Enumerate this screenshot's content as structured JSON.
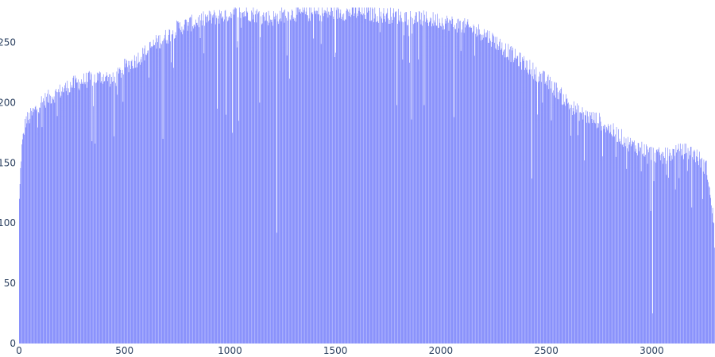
{
  "chart_data": {
    "type": "bar",
    "title": "",
    "xlabel": "",
    "ylabel": "",
    "xlim": [
      0,
      3300
    ],
    "ylim": [
      0,
      280
    ],
    "x_ticks": [
      0,
      500,
      1000,
      1500,
      2000,
      2500,
      3000
    ],
    "y_ticks": [
      0,
      50,
      100,
      150,
      200,
      250
    ],
    "bar_color": "#636efa",
    "grid": false,
    "legend": "none",
    "profile_x": [
      0,
      10,
      30,
      50,
      80,
      100,
      150,
      200,
      250,
      300,
      350,
      400,
      450,
      500,
      550,
      600,
      650,
      700,
      750,
      800,
      850,
      900,
      950,
      1000,
      1050,
      1100,
      1150,
      1200,
      1250,
      1300,
      1400,
      1500,
      1600,
      1700,
      1800,
      1900,
      2000,
      2100,
      2200,
      2250,
      2300,
      2350,
      2400,
      2450,
      2500,
      2550,
      2600,
      2650,
      2700,
      2750,
      2800,
      2850,
      2900,
      2950,
      3000,
      3050,
      3100,
      3150,
      3200,
      3240,
      3260,
      3270,
      3280,
      3290,
      3300
    ],
    "profile_y": [
      118,
      160,
      185,
      188,
      195,
      200,
      205,
      210,
      215,
      218,
      220,
      222,
      218,
      230,
      235,
      242,
      250,
      255,
      262,
      265,
      268,
      270,
      272,
      274,
      275,
      274,
      272,
      270,
      273,
      274,
      274,
      275,
      275,
      273,
      272,
      270,
      268,
      264,
      258,
      252,
      245,
      238,
      232,
      225,
      218,
      210,
      200,
      192,
      188,
      185,
      178,
      172,
      165,
      162,
      158,
      155,
      158,
      160,
      158,
      150,
      145,
      135,
      115,
      105,
      100
    ],
    "dips": [
      [
        680,
        170
      ],
      [
        345,
        168
      ],
      [
        360,
        166
      ],
      [
        450,
        172
      ],
      [
        940,
        195
      ],
      [
        980,
        190
      ],
      [
        1010,
        175
      ],
      [
        1040,
        185
      ],
      [
        1140,
        200
      ],
      [
        1222,
        92
      ],
      [
        1280,
        220
      ],
      [
        1790,
        198
      ],
      [
        1860,
        186
      ],
      [
        1920,
        198
      ],
      [
        2060,
        188
      ],
      [
        2430,
        137
      ],
      [
        2480,
        200
      ],
      [
        2650,
        173
      ],
      [
        2680,
        152
      ],
      [
        2880,
        145
      ],
      [
        2950,
        143
      ],
      [
        2995,
        110
      ],
      [
        3010,
        135
      ],
      [
        3003,
        25
      ],
      [
        3070,
        140
      ],
      [
        3110,
        128
      ],
      [
        3190,
        113
      ],
      [
        3240,
        120
      ]
    ]
  }
}
